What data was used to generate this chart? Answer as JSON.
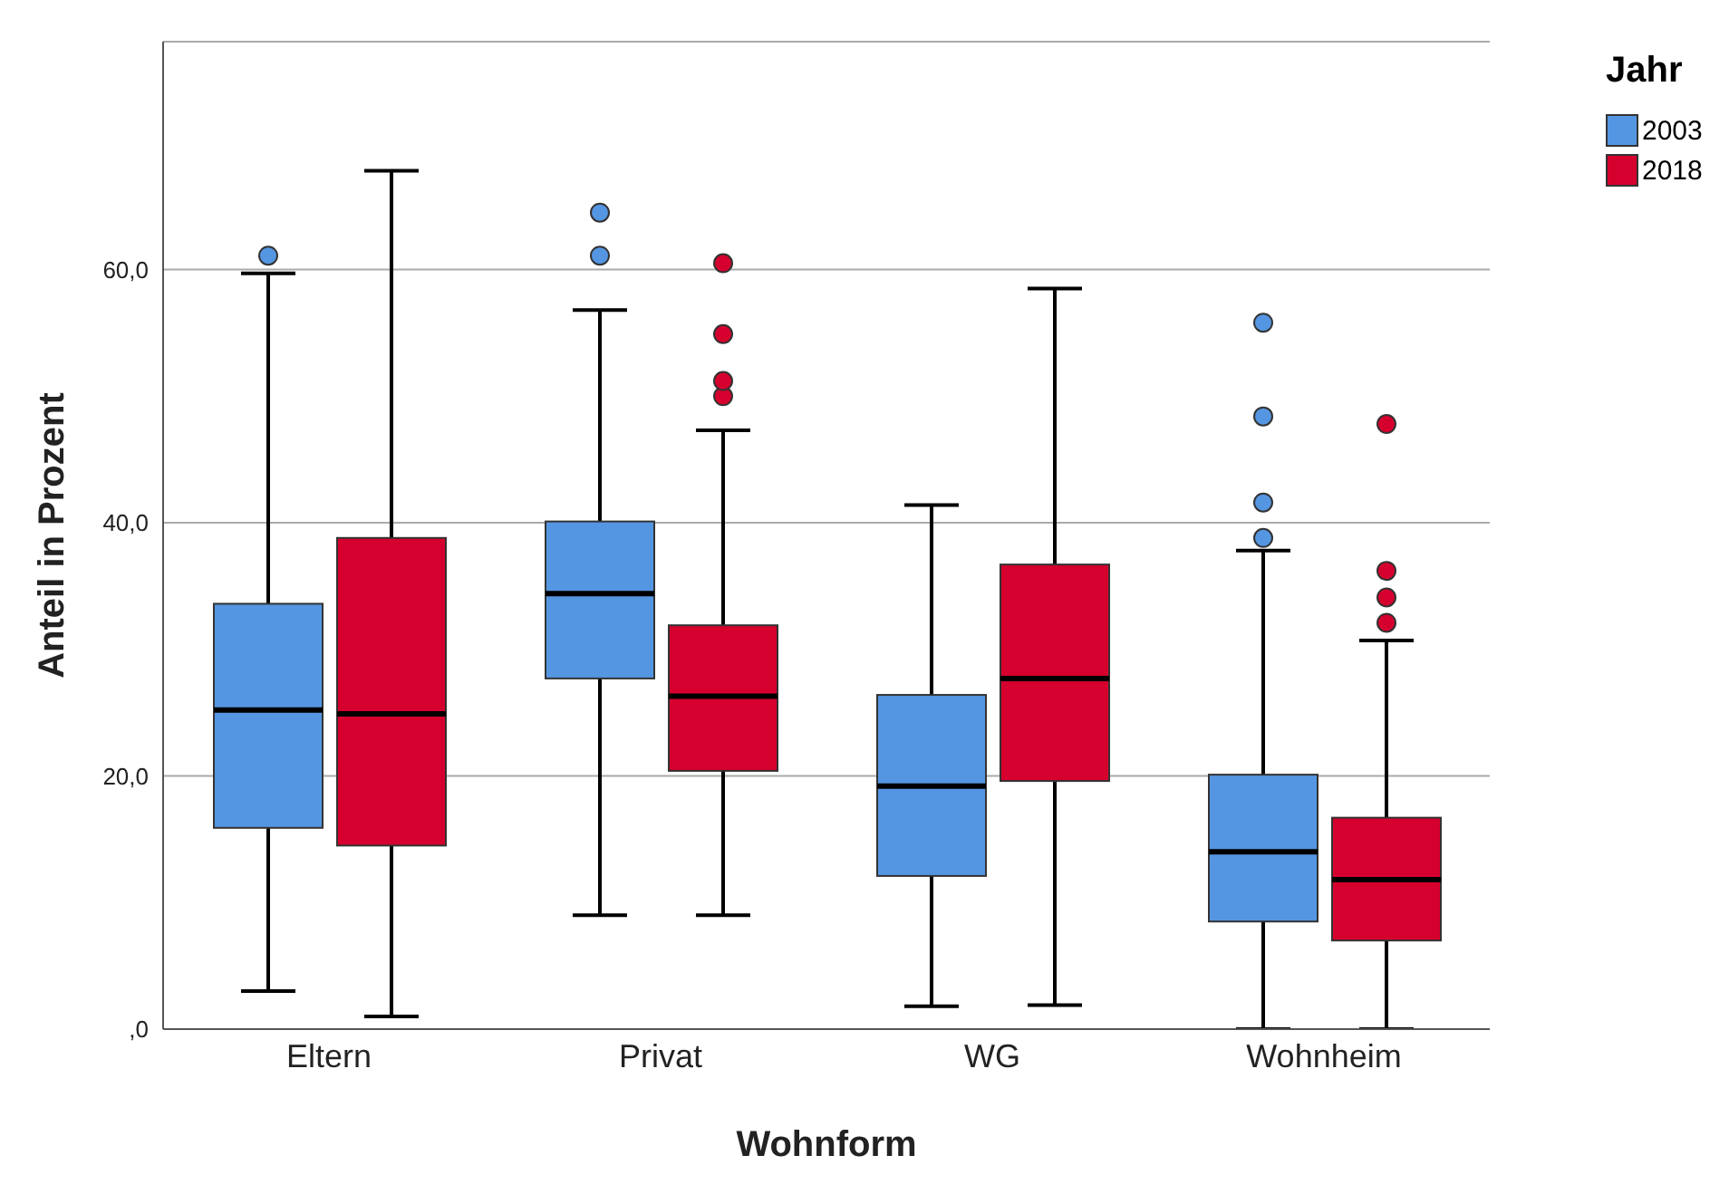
{
  "chart_data": {
    "type": "box",
    "categories": [
      "Eltern",
      "Privat",
      "WG",
      "Wohnheim"
    ],
    "xlabel": "Wohnform",
    "ylabel": "Anteil in Prozent",
    "legend_title": "Jahr",
    "ylim": [
      0,
      78
    ],
    "yticks": [
      {
        "value": 0,
        "label": ",0"
      },
      {
        "value": 20,
        "label": "20,0"
      },
      {
        "value": 40,
        "label": "40,0"
      },
      {
        "value": 60,
        "label": "60,0"
      }
    ],
    "grid": "y",
    "legend": "top right",
    "series": [
      {
        "name": "2003",
        "color": "#5596e2",
        "boxes": [
          {
            "low": 3.0,
            "q1": 15.9,
            "median": 25.2,
            "q3": 33.6,
            "high": 59.7,
            "outliers": [
              61.1
            ]
          },
          {
            "low": 9.0,
            "q1": 27.7,
            "median": 34.4,
            "q3": 40.1,
            "high": 56.8,
            "outliers": [
              61.1,
              64.5
            ]
          },
          {
            "low": 1.8,
            "q1": 12.1,
            "median": 19.2,
            "q3": 26.4,
            "high": 41.4
          },
          {
            "low": 0,
            "q1": 8.5,
            "median": 14.0,
            "q3": 20.1,
            "high": 37.8,
            "outliers": [
              38.8,
              41.6,
              48.4,
              55.8
            ]
          }
        ]
      },
      {
        "name": "2018",
        "color": "#d5002e",
        "boxes": [
          {
            "low": 1.0,
            "q1": 14.5,
            "median": 24.9,
            "q3": 38.8,
            "high": 67.8
          },
          {
            "low": 9.0,
            "q1": 20.4,
            "median": 26.3,
            "q3": 31.9,
            "high": 47.3,
            "outliers": [
              50.0,
              51.2,
              54.9,
              60.5
            ]
          },
          {
            "low": 1.9,
            "q1": 19.6,
            "median": 27.7,
            "q3": 36.7,
            "high": 58.5
          },
          {
            "low": 0,
            "q1": 7.0,
            "median": 11.8,
            "q3": 16.7,
            "high": 30.7,
            "outliers": [
              32.1,
              34.1,
              36.2,
              47.8
            ]
          }
        ]
      }
    ]
  }
}
